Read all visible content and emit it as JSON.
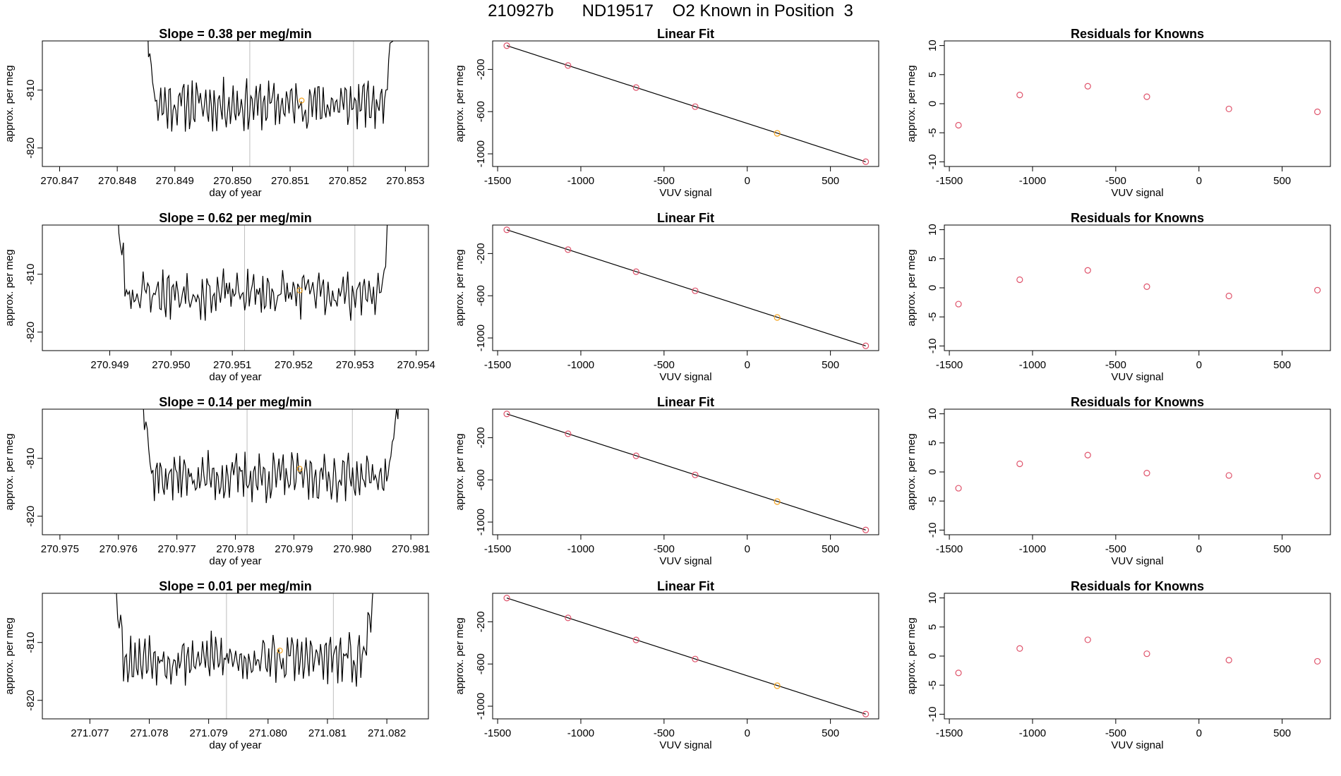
{
  "figure": {
    "title": "210927b      ND19517    O2 Known in Position  3"
  },
  "colors": {
    "trace": "#000000",
    "vline": "#bebebe",
    "point": "#df536b",
    "highlight": "#f5a623"
  },
  "chart_data": [
    {
      "type": "line",
      "title": "Slope =  0.38  per meg/min",
      "xlabel": "day of year",
      "ylabel": "approx. per meg",
      "xlim": [
        270.8467,
        270.8534
      ],
      "ylim": [
        -823.2,
        -801.5
      ],
      "xticks": [
        270.847,
        270.848,
        270.849,
        270.85,
        270.851,
        270.852,
        270.853
      ],
      "xticklabels": [
        "270.847",
        "270.848",
        "270.849",
        "270.850",
        "270.851",
        "270.852",
        "270.853"
      ],
      "yticks": [
        -810,
        -820
      ],
      "yticklabels": [
        "-810",
        "-820"
      ],
      "vlines": [
        270.8503,
        270.8521
      ],
      "trace_range": [
        270.8484,
        270.8529
      ],
      "trace_center": -812.5,
      "marker": {
        "x": 270.8512,
        "y": -811.8
      },
      "seed": 11
    },
    {
      "type": "scatter",
      "title": "Linear Fit",
      "xlabel": "VUV signal",
      "ylabel": "approx. per meg",
      "xlim": [
        -1530,
        790
      ],
      "ylim": [
        -1120,
        70
      ],
      "xticks": [
        -1500,
        -1000,
        -500,
        0,
        500
      ],
      "xticklabels": [
        "-1500",
        "-1000",
        "-500",
        "0",
        "500"
      ],
      "yticks": [
        -200,
        -600,
        -1000
      ],
      "yticklabels": [
        "-200",
        "-600",
        "-1000"
      ],
      "fit_line": {
        "x": [
          -1445,
          712
        ],
        "y": [
          25,
          -1075
        ]
      },
      "points_x": [
        -1445,
        -1077,
        -668,
        -313,
        180,
        712
      ],
      "points_y": [
        25,
        -163,
        -372,
        -553,
        -806,
        -1075
      ],
      "highlight_index": 4
    },
    {
      "type": "scatter",
      "title": "Residuals for Knowns",
      "xlabel": "VUV signal",
      "ylabel": "approx. per meg",
      "xlim": [
        -1530,
        790
      ],
      "ylim": [
        -10.8,
        10.8
      ],
      "xticks": [
        -1500,
        -1000,
        -500,
        0,
        500
      ],
      "xticklabels": [
        "-1500",
        "-1000",
        "-500",
        "0",
        "500"
      ],
      "yticks": [
        -10,
        -5,
        0,
        5,
        10
      ],
      "yticklabels": [
        "-10",
        "-5",
        "0",
        "5",
        "10"
      ],
      "points_x": [
        -1445,
        -1077,
        -668,
        -313,
        180,
        712
      ],
      "points_y": [
        -3.7,
        1.5,
        3.0,
        1.2,
        -0.9,
        -1.4
      ]
    },
    {
      "type": "line",
      "title": "Slope =  0.62  per meg/min",
      "xlabel": "day of year",
      "ylabel": "approx. per meg",
      "xlim": [
        270.9483,
        270.9546
      ],
      "ylim": [
        -823.2,
        -801.5
      ],
      "xticks": [
        270.9494,
        270.9504,
        270.9514,
        270.9524,
        270.9534,
        270.9544
      ],
      "xticklabels": [
        "270.949",
        "270.950",
        "270.951",
        "270.952",
        "270.953",
        "270.954"
      ],
      "yticks": [
        -810,
        -820
      ],
      "yticklabels": [
        "-810",
        "-820"
      ],
      "vlines": [
        270.9516,
        270.9534
      ],
      "trace_range": [
        270.9494,
        270.9541
      ],
      "trace_center": -813.3,
      "marker": {
        "x": 270.9525,
        "y": -812.8
      },
      "seed": 23
    },
    {
      "type": "scatter",
      "title": "Linear Fit",
      "xlabel": "VUV signal",
      "ylabel": "approx. per meg",
      "xlim": [
        -1530,
        790
      ],
      "ylim": [
        -1120,
        70
      ],
      "xticks": [
        -1500,
        -1000,
        -500,
        0,
        500
      ],
      "xticklabels": [
        "-1500",
        "-1000",
        "-500",
        "0",
        "500"
      ],
      "yticks": [
        -200,
        -600,
        -1000
      ],
      "yticklabels": [
        "-200",
        "-600",
        "-1000"
      ],
      "fit_line": {
        "x": [
          -1445,
          712
        ],
        "y": [
          25,
          -1075
        ]
      },
      "points_x": [
        -1445,
        -1077,
        -668,
        -313,
        180,
        712
      ],
      "points_y": [
        25,
        -163,
        -372,
        -553,
        -806,
        -1075
      ],
      "highlight_index": 4
    },
    {
      "type": "scatter",
      "title": "Residuals for Knowns",
      "xlabel": "VUV signal",
      "ylabel": "approx. per meg",
      "xlim": [
        -1530,
        790
      ],
      "ylim": [
        -10.8,
        10.8
      ],
      "xticks": [
        -1500,
        -1000,
        -500,
        0,
        500
      ],
      "xticklabels": [
        "-1500",
        "-1000",
        "-500",
        "0",
        "500"
      ],
      "yticks": [
        -10,
        -5,
        0,
        5,
        10
      ],
      "yticklabels": [
        "-10",
        "-5",
        "0",
        "5",
        "10"
      ],
      "points_x": [
        -1445,
        -1077,
        -668,
        -313,
        180,
        712
      ],
      "points_y": [
        -2.8,
        1.4,
        3.0,
        0.2,
        -1.4,
        -0.4
      ]
    },
    {
      "type": "line",
      "title": "Slope =  0.14  per meg/min",
      "xlabel": "day of year",
      "ylabel": "approx. per meg",
      "xlim": [
        270.9747,
        270.9813
      ],
      "ylim": [
        -823.2,
        -801.5
      ],
      "xticks": [
        270.975,
        270.976,
        270.977,
        270.978,
        270.979,
        270.98,
        270.981
      ],
      "xticklabels": [
        "270.975",
        "270.976",
        "270.977",
        "270.978",
        "270.979",
        "270.980",
        "270.981"
      ],
      "yticks": [
        -810,
        -820
      ],
      "yticklabels": [
        "-810",
        "-820"
      ],
      "vlines": [
        270.9782,
        270.98
      ],
      "trace_range": [
        270.9763,
        270.9809
      ],
      "trace_center": -813.2,
      "marker": {
        "x": 270.9791,
        "y": -811.8
      },
      "seed": 37
    },
    {
      "type": "scatter",
      "title": "Linear Fit",
      "xlabel": "VUV signal",
      "ylabel": "approx. per meg",
      "xlim": [
        -1530,
        790
      ],
      "ylim": [
        -1120,
        70
      ],
      "xticks": [
        -1500,
        -1000,
        -500,
        0,
        500
      ],
      "xticklabels": [
        "-1500",
        "-1000",
        "-500",
        "0",
        "500"
      ],
      "yticks": [
        -200,
        -600,
        -1000
      ],
      "yticklabels": [
        "-200",
        "-600",
        "-1000"
      ],
      "fit_line": {
        "x": [
          -1445,
          712
        ],
        "y": [
          25,
          -1075
        ]
      },
      "points_x": [
        -1445,
        -1077,
        -668,
        -313,
        180,
        712
      ],
      "points_y": [
        25,
        -163,
        -372,
        -553,
        -806,
        -1075
      ],
      "highlight_index": 4
    },
    {
      "type": "scatter",
      "title": "Residuals for Knowns",
      "xlabel": "VUV signal",
      "ylabel": "approx. per meg",
      "xlim": [
        -1530,
        790
      ],
      "ylim": [
        -10.8,
        10.8
      ],
      "xticks": [
        -1500,
        -1000,
        -500,
        0,
        500
      ],
      "xticklabels": [
        "-1500",
        "-1000",
        "-500",
        "0",
        "500"
      ],
      "yticks": [
        -10,
        -5,
        0,
        5,
        10
      ],
      "yticklabels": [
        "-10",
        "-5",
        "0",
        "5",
        "10"
      ],
      "points_x": [
        -1445,
        -1077,
        -668,
        -313,
        180,
        712
      ],
      "points_y": [
        -2.8,
        1.4,
        2.9,
        -0.2,
        -0.6,
        -0.7
      ]
    },
    {
      "type": "line",
      "title": "Slope =  0.01  per meg/min",
      "xlabel": "day of year",
      "ylabel": "approx. per meg",
      "xlim": [
        271.0764,
        271.0829
      ],
      "ylim": [
        -823.2,
        -801.5
      ],
      "xticks": [
        271.0772,
        271.0782,
        271.0792,
        271.0802,
        271.0812,
        271.0822
      ],
      "xticklabels": [
        "271.077",
        "271.078",
        "271.079",
        "271.080",
        "271.081",
        "271.082"
      ],
      "yticks": [
        -810,
        -820
      ],
      "yticklabels": [
        "-810",
        "-820"
      ],
      "vlines": [
        271.0795,
        271.0813
      ],
      "trace_range": [
        271.0775,
        271.0821
      ],
      "trace_center": -812.8,
      "marker": {
        "x": 271.0804,
        "y": -811.4
      },
      "seed": 53
    },
    {
      "type": "scatter",
      "title": "Linear Fit",
      "xlabel": "VUV signal",
      "ylabel": "approx. per meg",
      "xlim": [
        -1530,
        790
      ],
      "ylim": [
        -1120,
        70
      ],
      "xticks": [
        -1500,
        -1000,
        -500,
        0,
        500
      ],
      "xticklabels": [
        "-1500",
        "-1000",
        "-500",
        "0",
        "500"
      ],
      "yticks": [
        -200,
        -600,
        -1000
      ],
      "yticklabels": [
        "-200",
        "-600",
        "-1000"
      ],
      "fit_line": {
        "x": [
          -1445,
          712
        ],
        "y": [
          25,
          -1075
        ]
      },
      "points_x": [
        -1445,
        -1077,
        -668,
        -313,
        180,
        712
      ],
      "points_y": [
        25,
        -163,
        -372,
        -553,
        -806,
        -1075
      ],
      "highlight_index": 4
    },
    {
      "type": "scatter",
      "title": "Residuals for Knowns",
      "xlabel": "VUV signal",
      "ylabel": "approx. per meg",
      "xlim": [
        -1530,
        790
      ],
      "ylim": [
        -10.8,
        10.8
      ],
      "xticks": [
        -1500,
        -1000,
        -500,
        0,
        500
      ],
      "xticklabels": [
        "-1500",
        "-1000",
        "-500",
        "0",
        "500"
      ],
      "yticks": [
        -10,
        -5,
        0,
        5,
        10
      ],
      "yticklabels": [
        "-10",
        "-5",
        "0",
        "5",
        "10"
      ],
      "points_x": [
        -1445,
        -1077,
        -668,
        -313,
        180,
        712
      ],
      "points_y": [
        -2.9,
        1.3,
        2.8,
        0.4,
        -0.7,
        -0.9
      ]
    }
  ]
}
